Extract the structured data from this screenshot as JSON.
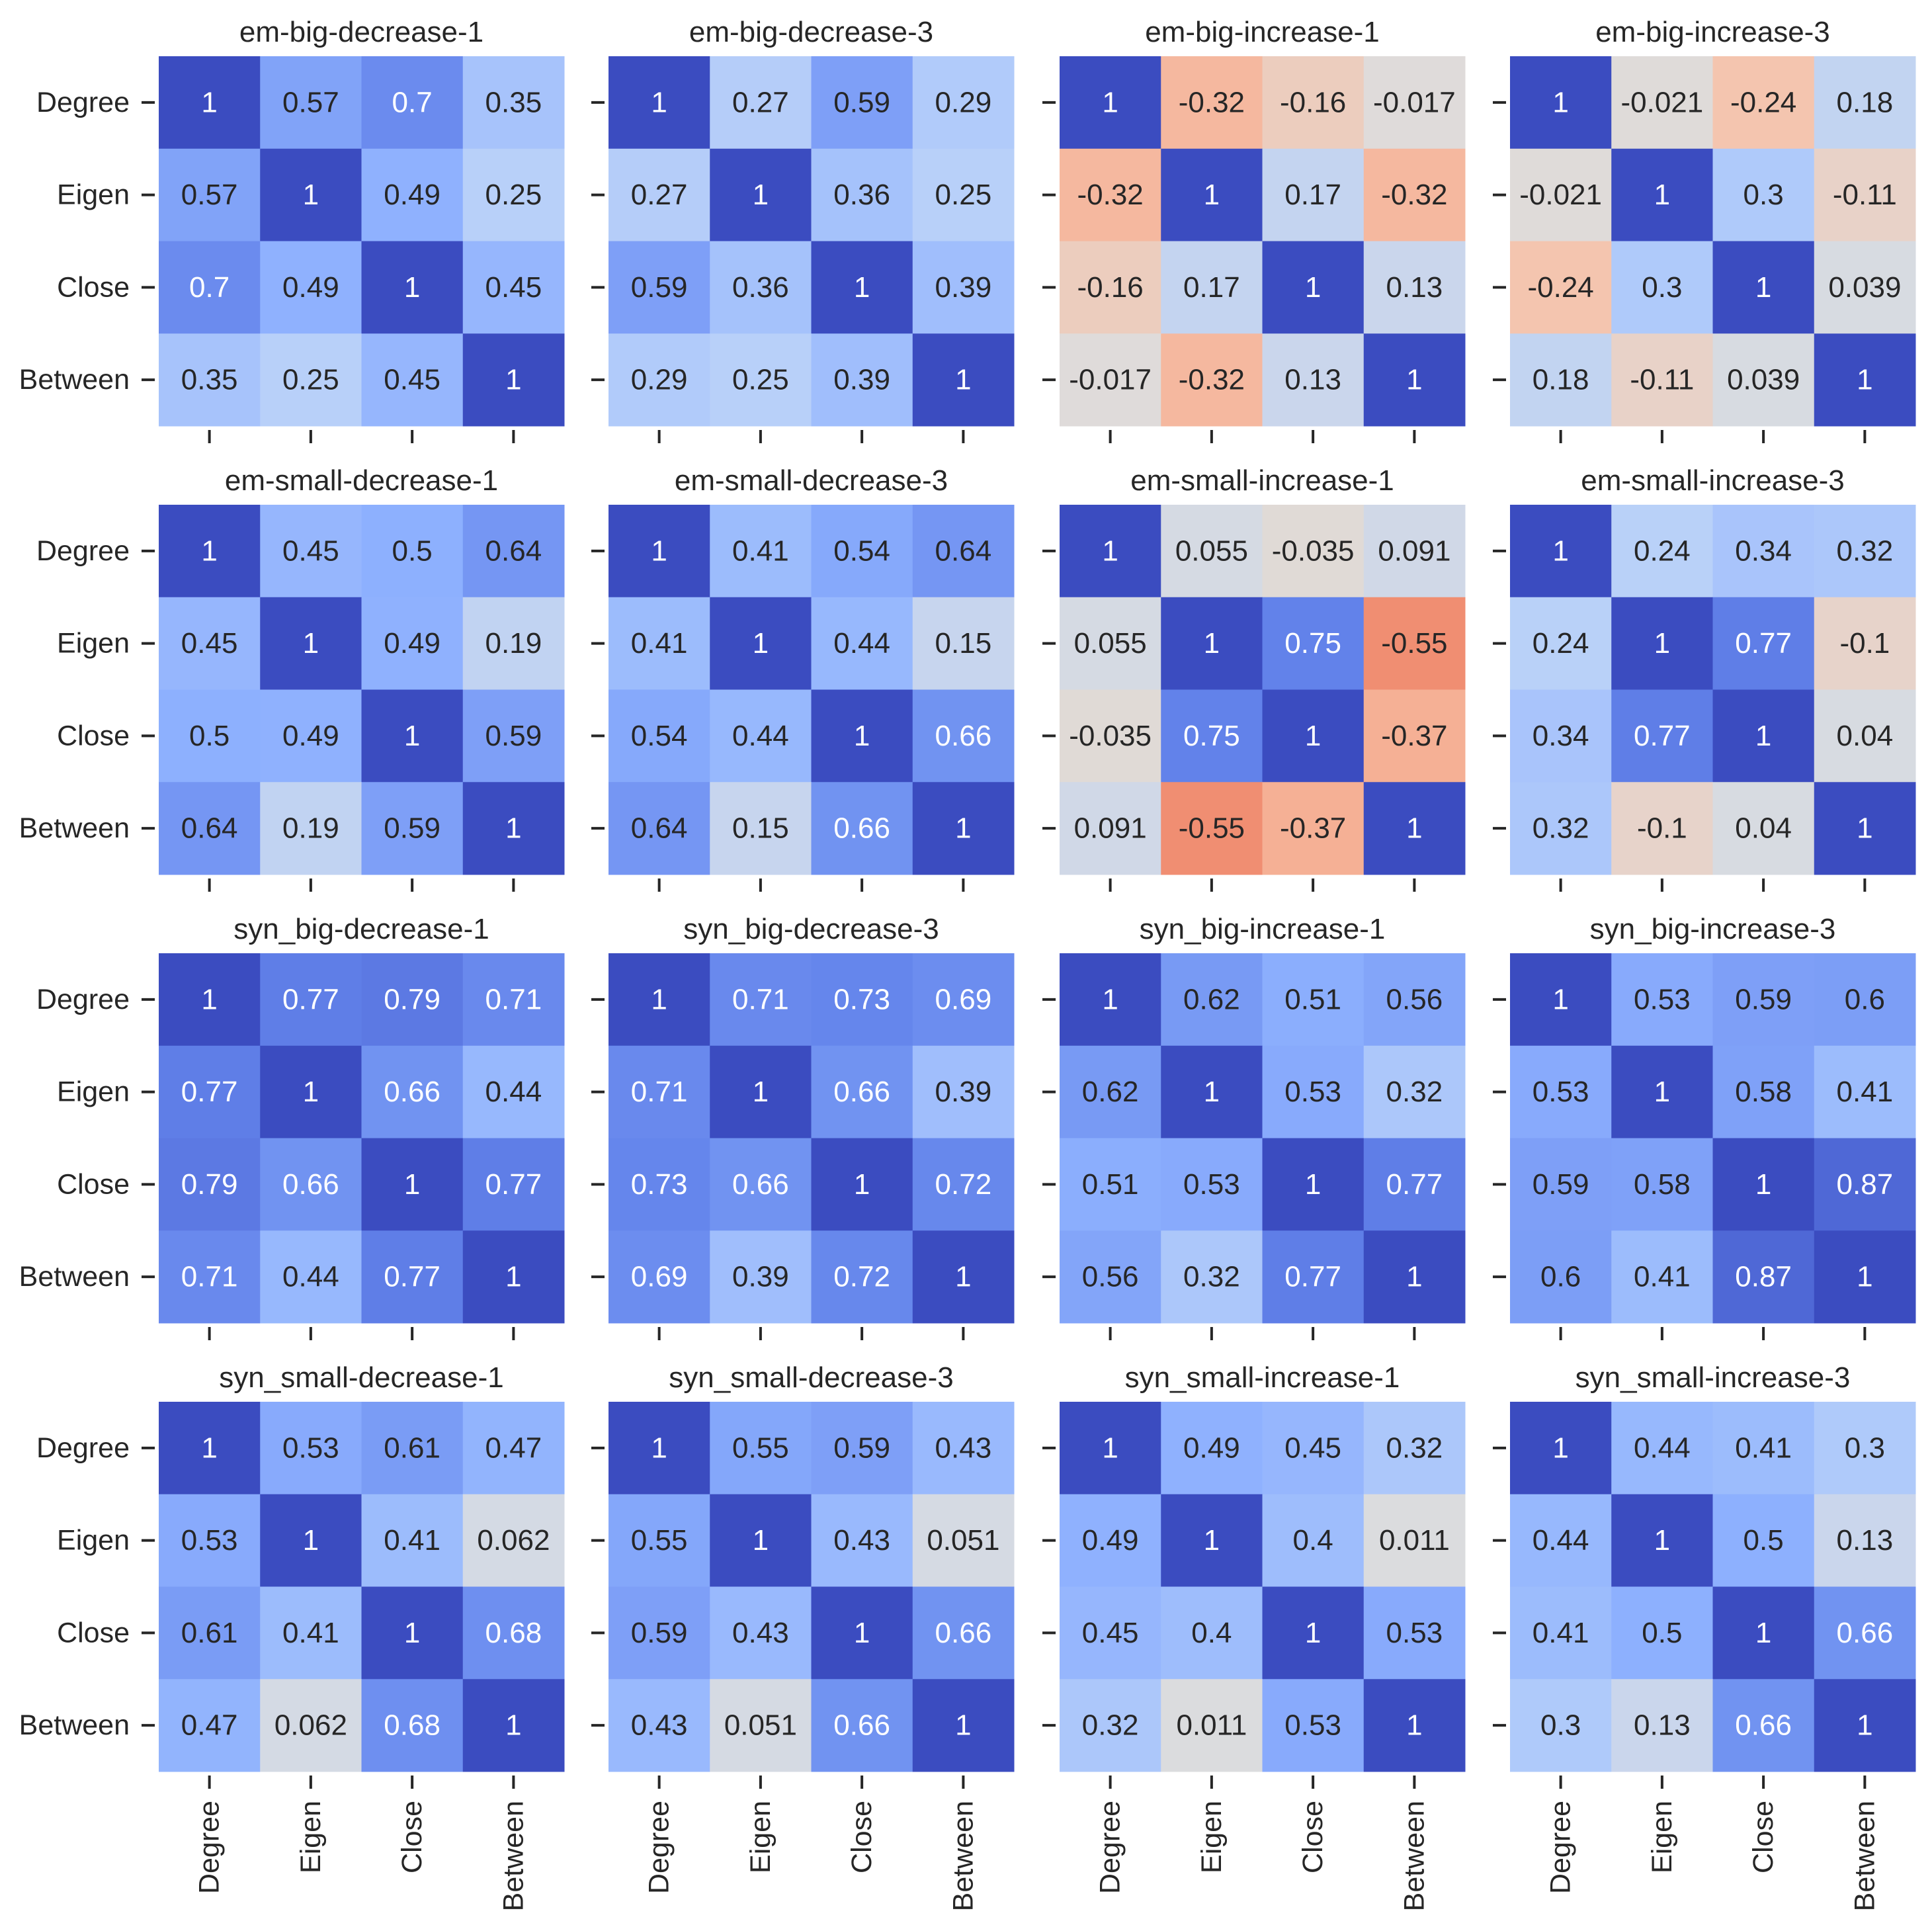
{
  "figure": {
    "row_labels": [
      "Degree",
      "Eigen",
      "Close",
      "Between"
    ],
    "col_labels": [
      "Degree",
      "Eigen",
      "Close",
      "Between"
    ]
  },
  "colors": {
    "colormap": "coolwarm",
    "vmin": -1,
    "vmax": 1,
    "text_dark": "#262626",
    "text_light": "#ffffff"
  },
  "chart_data": [
    {
      "type": "heatmap",
      "title": "em-big-decrease-1",
      "values": [
        [
          1,
          0.57,
          0.7,
          0.35
        ],
        [
          0.57,
          1,
          0.49,
          0.25
        ],
        [
          0.7,
          0.49,
          1,
          0.45
        ],
        [
          0.35,
          0.25,
          0.45,
          1
        ]
      ]
    },
    {
      "type": "heatmap",
      "title": "em-big-decrease-3",
      "values": [
        [
          1,
          0.27,
          0.59,
          0.29
        ],
        [
          0.27,
          1,
          0.36,
          0.25
        ],
        [
          0.59,
          0.36,
          1,
          0.39
        ],
        [
          0.29,
          0.25,
          0.39,
          1
        ]
      ]
    },
    {
      "type": "heatmap",
      "title": "em-big-increase-1",
      "values": [
        [
          1,
          -0.32,
          -0.16,
          -0.017
        ],
        [
          -0.32,
          1,
          0.17,
          -0.32
        ],
        [
          -0.16,
          0.17,
          1,
          0.13
        ],
        [
          -0.017,
          -0.32,
          0.13,
          1
        ]
      ]
    },
    {
      "type": "heatmap",
      "title": "em-big-increase-3",
      "values": [
        [
          1,
          -0.021,
          -0.24,
          0.18
        ],
        [
          -0.021,
          1,
          0.3,
          -0.11
        ],
        [
          -0.24,
          0.3,
          1,
          0.039
        ],
        [
          0.18,
          -0.11,
          0.039,
          1
        ]
      ]
    },
    {
      "type": "heatmap",
      "title": "em-small-decrease-1",
      "values": [
        [
          1,
          0.45,
          0.5,
          0.64
        ],
        [
          0.45,
          1,
          0.49,
          0.19
        ],
        [
          0.5,
          0.49,
          1,
          0.59
        ],
        [
          0.64,
          0.19,
          0.59,
          1
        ]
      ]
    },
    {
      "type": "heatmap",
      "title": "em-small-decrease-3",
      "values": [
        [
          1,
          0.41,
          0.54,
          0.64
        ],
        [
          0.41,
          1,
          0.44,
          0.15
        ],
        [
          0.54,
          0.44,
          1,
          0.66
        ],
        [
          0.64,
          0.15,
          0.66,
          1
        ]
      ]
    },
    {
      "type": "heatmap",
      "title": "em-small-increase-1",
      "values": [
        [
          1,
          0.055,
          -0.035,
          0.091
        ],
        [
          0.055,
          1,
          0.75,
          -0.55
        ],
        [
          -0.035,
          0.75,
          1,
          -0.37
        ],
        [
          0.091,
          -0.55,
          -0.37,
          1
        ]
      ]
    },
    {
      "type": "heatmap",
      "title": "em-small-increase-3",
      "values": [
        [
          1,
          0.24,
          0.34,
          0.32
        ],
        [
          0.24,
          1,
          0.77,
          -0.1
        ],
        [
          0.34,
          0.77,
          1,
          0.04
        ],
        [
          0.32,
          -0.1,
          0.04,
          1
        ]
      ]
    },
    {
      "type": "heatmap",
      "title": "syn_big-decrease-1",
      "values": [
        [
          1,
          0.77,
          0.79,
          0.71
        ],
        [
          0.77,
          1,
          0.66,
          0.44
        ],
        [
          0.79,
          0.66,
          1,
          0.77
        ],
        [
          0.71,
          0.44,
          0.77,
          1
        ]
      ]
    },
    {
      "type": "heatmap",
      "title": "syn_big-decrease-3",
      "values": [
        [
          1,
          0.71,
          0.73,
          0.69
        ],
        [
          0.71,
          1,
          0.66,
          0.39
        ],
        [
          0.73,
          0.66,
          1,
          0.72
        ],
        [
          0.69,
          0.39,
          0.72,
          1
        ]
      ]
    },
    {
      "type": "heatmap",
      "title": "syn_big-increase-1",
      "values": [
        [
          1,
          0.62,
          0.51,
          0.56
        ],
        [
          0.62,
          1,
          0.53,
          0.32
        ],
        [
          0.51,
          0.53,
          1,
          0.77
        ],
        [
          0.56,
          0.32,
          0.77,
          1
        ]
      ]
    },
    {
      "type": "heatmap",
      "title": "syn_big-increase-3",
      "values": [
        [
          1,
          0.53,
          0.59,
          0.6
        ],
        [
          0.53,
          1,
          0.58,
          0.41
        ],
        [
          0.59,
          0.58,
          1,
          0.87
        ],
        [
          0.6,
          0.41,
          0.87,
          1
        ]
      ]
    },
    {
      "type": "heatmap",
      "title": "syn_small-decrease-1",
      "values": [
        [
          1,
          0.53,
          0.61,
          0.47
        ],
        [
          0.53,
          1,
          0.41,
          0.062
        ],
        [
          0.61,
          0.41,
          1,
          0.68
        ],
        [
          0.47,
          0.062,
          0.68,
          1
        ]
      ]
    },
    {
      "type": "heatmap",
      "title": "syn_small-decrease-3",
      "values": [
        [
          1,
          0.55,
          0.59,
          0.43
        ],
        [
          0.55,
          1,
          0.43,
          0.051
        ],
        [
          0.59,
          0.43,
          1,
          0.66
        ],
        [
          0.43,
          0.051,
          0.66,
          1
        ]
      ]
    },
    {
      "type": "heatmap",
      "title": "syn_small-increase-1",
      "values": [
        [
          1,
          0.49,
          0.45,
          0.32
        ],
        [
          0.49,
          1,
          0.4,
          0.011
        ],
        [
          0.45,
          0.4,
          1,
          0.53
        ],
        [
          0.32,
          0.011,
          0.53,
          1
        ]
      ]
    },
    {
      "type": "heatmap",
      "title": "syn_small-increase-3",
      "values": [
        [
          1,
          0.44,
          0.41,
          0.3
        ],
        [
          0.44,
          1,
          0.5,
          0.13
        ],
        [
          0.41,
          0.5,
          1,
          0.66
        ],
        [
          0.3,
          0.13,
          0.66,
          1
        ]
      ]
    }
  ]
}
